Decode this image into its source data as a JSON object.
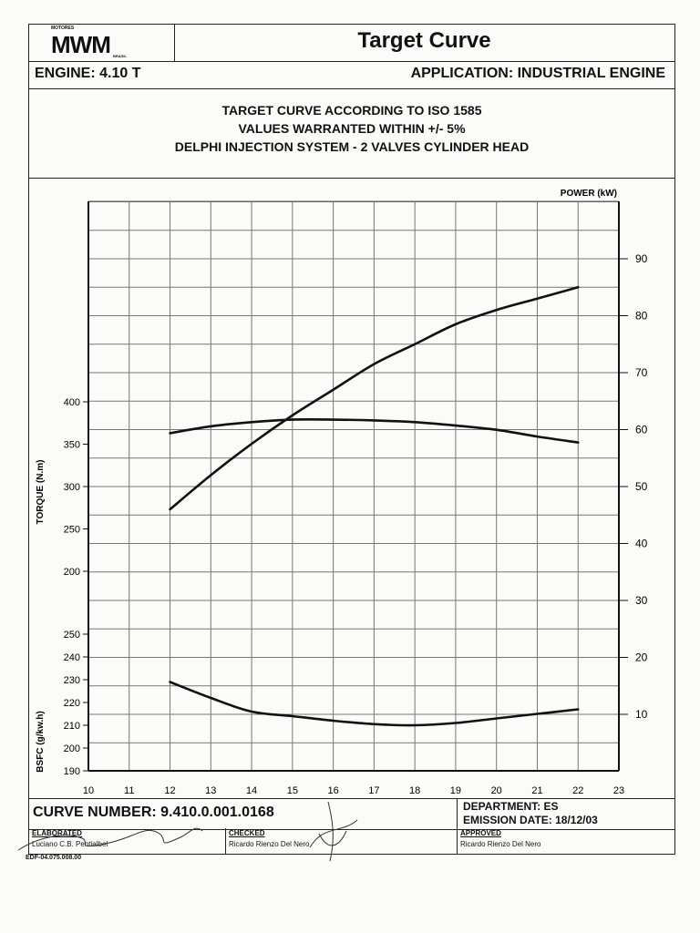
{
  "header": {
    "logo": {
      "top_text": "MOTORES",
      "main_text": "MWM",
      "sub_text": "BRASIL"
    },
    "title": "Target Curve",
    "engine": "ENGINE: 4.10 T",
    "application": "APPLICATION: INDUSTRIAL ENGINE"
  },
  "subtitle": {
    "line1": "TARGET CURVE ACCORDING TO ISO 1585",
    "line2": "VALUES WARRANTED WITHIN +/- 5%",
    "line3": "DELPHI INJECTION SYSTEM - 2 VALVES CYLINDER HEAD"
  },
  "chart_data": {
    "type": "line",
    "title": "",
    "grid": true,
    "x": {
      "label": "",
      "range": [
        10,
        23
      ],
      "ticks": [
        10,
        11,
        12,
        13,
        14,
        15,
        16,
        17,
        18,
        19,
        20,
        21,
        22,
        23
      ]
    },
    "y_power": {
      "label": "POWER (kW)",
      "range": [
        0,
        100
      ],
      "ticks": [
        10,
        20,
        30,
        40,
        50,
        60,
        70,
        80,
        90
      ]
    },
    "y_torque": {
      "label": "TORQUE (N.m)",
      "range": [
        175,
        400
      ],
      "ticks": [
        200,
        250,
        300,
        350,
        400
      ]
    },
    "y_bsfc": {
      "label": "BSFC (g/kw.h)",
      "range": [
        190,
        250
      ],
      "ticks": [
        190,
        200,
        210,
        220,
        230,
        240,
        250
      ]
    },
    "series": [
      {
        "axis": "power",
        "x": [
          12,
          13,
          14,
          15,
          16,
          17,
          18,
          19,
          20,
          21,
          22
        ],
        "values": [
          46,
          52,
          57.5,
          62.5,
          67,
          71.5,
          75,
          78.5,
          81,
          83,
          85
        ]
      },
      {
        "axis": "torque",
        "x": [
          12,
          13,
          14,
          15,
          16,
          17,
          18,
          19,
          20,
          21,
          22
        ],
        "values": [
          363,
          371,
          376,
          379,
          379,
          378,
          376,
          372,
          367,
          359,
          352
        ]
      },
      {
        "axis": "bsfc",
        "x": [
          12,
          13,
          14,
          15,
          16,
          17,
          18,
          19,
          20,
          21,
          22
        ],
        "values": [
          229,
          222,
          216,
          214,
          212,
          210.5,
          210,
          211,
          213,
          215,
          217
        ]
      }
    ]
  },
  "footer": {
    "curve_number": "CURVE NUMBER: 9.410.0.001.0168",
    "department": "DEPARTMENT: ES",
    "emission_date": "EMISSION DATE: 18/12/03",
    "elaborated_label": "ELABORATED",
    "elaborated_name": "Luciano C.B. Pentialbel",
    "checked_label": "CHECKED",
    "checked_name": "Ricardo Rienzo Del Nero",
    "approved_label": "APPROVED",
    "approved_name": "Ricardo Rienzo Del Nero",
    "form_code": "EDF-04.075.008.00"
  }
}
